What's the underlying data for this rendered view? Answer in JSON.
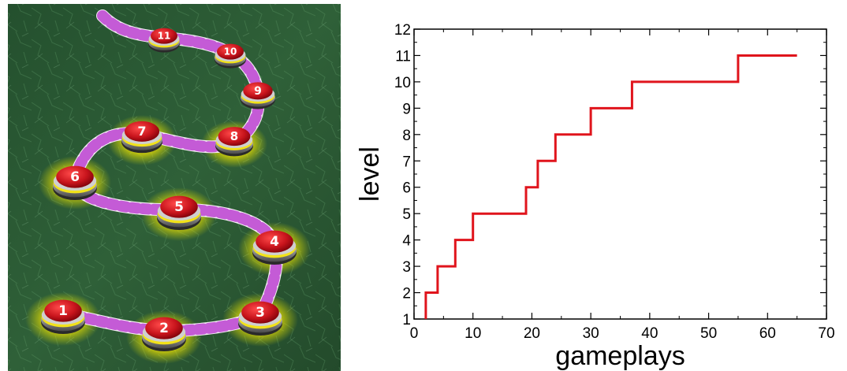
{
  "level_map": {
    "levels": [
      {
        "label": "1",
        "unlocked": true
      },
      {
        "label": "2",
        "unlocked": true
      },
      {
        "label": "3",
        "unlocked": true
      },
      {
        "label": "4",
        "unlocked": true
      },
      {
        "label": "5",
        "unlocked": true
      },
      {
        "label": "6",
        "unlocked": true
      },
      {
        "label": "7",
        "unlocked": true
      },
      {
        "label": "8",
        "unlocked": true
      },
      {
        "label": "9",
        "unlocked": false
      },
      {
        "label": "10",
        "unlocked": false
      },
      {
        "label": "11",
        "unlocked": false
      }
    ],
    "colors": {
      "background": "#2e5a36",
      "button_top": "#c8141c",
      "glow": "#fff200",
      "path_stripe": "#c45bd6"
    }
  },
  "chart_data": {
    "type": "line",
    "step": true,
    "title": "",
    "xlabel": "gameplays",
    "ylabel": "level",
    "xlim": [
      0,
      70
    ],
    "ylim": [
      1,
      12
    ],
    "xticks": [
      "0",
      "10",
      "20",
      "30",
      "40",
      "50",
      "60",
      "70"
    ],
    "yticks": [
      "1",
      "2",
      "3",
      "4",
      "5",
      "6",
      "7",
      "8",
      "9",
      "10",
      "11",
      "12"
    ],
    "grid": false,
    "legend": "none",
    "series": [
      {
        "color": "#e0141c",
        "points": [
          [
            2,
            1
          ],
          [
            2,
            2
          ],
          [
            4,
            2
          ],
          [
            4,
            3
          ],
          [
            7,
            3
          ],
          [
            7,
            4
          ],
          [
            10,
            4
          ],
          [
            10,
            5
          ],
          [
            19,
            5
          ],
          [
            19,
            6
          ],
          [
            21,
            6
          ],
          [
            21,
            7
          ],
          [
            24,
            7
          ],
          [
            24,
            8
          ],
          [
            30,
            8
          ],
          [
            30,
            9
          ],
          [
            37,
            9
          ],
          [
            37,
            10
          ],
          [
            55,
            10
          ],
          [
            55,
            11
          ],
          [
            65,
            11
          ]
        ]
      }
    ]
  }
}
